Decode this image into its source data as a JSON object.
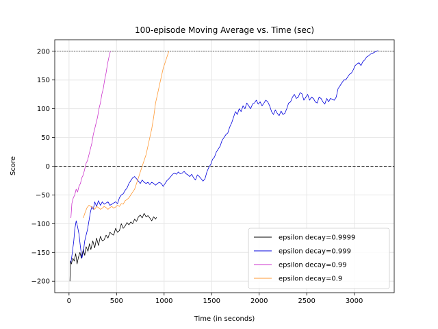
{
  "chart_data": {
    "type": "line",
    "title": "100-episode Moving Average vs. Time (sec)",
    "xlabel": "Time (in seconds)",
    "ylabel": "Score",
    "xlim": [
      -150,
      3420
    ],
    "ylim": [
      -220,
      220
    ],
    "xticks": [
      0,
      500,
      1000,
      1500,
      2000,
      2500,
      3000
    ],
    "yticks": [
      -200,
      -150,
      -100,
      -50,
      0,
      50,
      100,
      150,
      200
    ],
    "grid": true,
    "legend_position": "lower-right",
    "reference_lines": [
      {
        "y": 200,
        "style": "dotted",
        "color": "#000000"
      },
      {
        "y": 0,
        "style": "dashed",
        "color": "#000000"
      }
    ],
    "series": [
      {
        "name": "epsilon decay=0.9999",
        "color": "#000000",
        "points": [
          [
            10,
            -200
          ],
          [
            15,
            -165
          ],
          [
            25,
            -170
          ],
          [
            40,
            -160
          ],
          [
            55,
            -165
          ],
          [
            70,
            -152
          ],
          [
            85,
            -170
          ],
          [
            100,
            -158
          ],
          [
            115,
            -150
          ],
          [
            130,
            -160
          ],
          [
            150,
            -145
          ],
          [
            165,
            -155
          ],
          [
            180,
            -140
          ],
          [
            200,
            -148
          ],
          [
            215,
            -135
          ],
          [
            230,
            -145
          ],
          [
            250,
            -130
          ],
          [
            270,
            -142
          ],
          [
            290,
            -125
          ],
          [
            310,
            -138
          ],
          [
            330,
            -122
          ],
          [
            350,
            -130
          ],
          [
            370,
            -128
          ],
          [
            390,
            -120
          ],
          [
            410,
            -125
          ],
          [
            430,
            -115
          ],
          [
            450,
            -118
          ],
          [
            470,
            -120
          ],
          [
            490,
            -108
          ],
          [
            510,
            -115
          ],
          [
            530,
            -112
          ],
          [
            550,
            -100
          ],
          [
            570,
            -108
          ],
          [
            590,
            -104
          ],
          [
            610,
            -98
          ],
          [
            630,
            -102
          ],
          [
            650,
            -97
          ],
          [
            670,
            -100
          ],
          [
            690,
            -92
          ],
          [
            710,
            -96
          ],
          [
            730,
            -88
          ],
          [
            750,
            -85
          ],
          [
            770,
            -90
          ],
          [
            790,
            -82
          ],
          [
            810,
            -88
          ],
          [
            830,
            -86
          ],
          [
            850,
            -90
          ],
          [
            870,
            -95
          ],
          [
            890,
            -88
          ],
          [
            910,
            -92
          ],
          [
            920,
            -89
          ]
        ]
      },
      {
        "name": "epsilon decay=0.999",
        "color": "#0000dd",
        "points": [
          [
            20,
            -168
          ],
          [
            35,
            -150
          ],
          [
            50,
            -130
          ],
          [
            60,
            -110
          ],
          [
            75,
            -95
          ],
          [
            90,
            -105
          ],
          [
            105,
            -118
          ],
          [
            120,
            -140
          ],
          [
            135,
            -160
          ],
          [
            150,
            -150
          ],
          [
            165,
            -130
          ],
          [
            180,
            -120
          ],
          [
            195,
            -110
          ],
          [
            210,
            -95
          ],
          [
            225,
            -80
          ],
          [
            240,
            -70
          ],
          [
            255,
            -75
          ],
          [
            270,
            -62
          ],
          [
            290,
            -70
          ],
          [
            310,
            -60
          ],
          [
            330,
            -68
          ],
          [
            350,
            -62
          ],
          [
            370,
            -66
          ],
          [
            390,
            -64
          ],
          [
            410,
            -62
          ],
          [
            430,
            -68
          ],
          [
            450,
            -66
          ],
          [
            470,
            -64
          ],
          [
            490,
            -62
          ],
          [
            510,
            -65
          ],
          [
            530,
            -55
          ],
          [
            550,
            -50
          ],
          [
            570,
            -48
          ],
          [
            590,
            -42
          ],
          [
            610,
            -38
          ],
          [
            630,
            -30
          ],
          [
            650,
            -25
          ],
          [
            670,
            -20
          ],
          [
            690,
            -18
          ],
          [
            710,
            -22
          ],
          [
            730,
            -26
          ],
          [
            750,
            -30
          ],
          [
            770,
            -24
          ],
          [
            790,
            -28
          ],
          [
            810,
            -30
          ],
          [
            830,
            -28
          ],
          [
            850,
            -32
          ],
          [
            870,
            -28
          ],
          [
            890,
            -30
          ],
          [
            910,
            -33
          ],
          [
            930,
            -30
          ],
          [
            950,
            -28
          ],
          [
            970,
            -30
          ],
          [
            990,
            -35
          ],
          [
            1010,
            -30
          ],
          [
            1030,
            -25
          ],
          [
            1050,
            -22
          ],
          [
            1070,
            -18
          ],
          [
            1090,
            -14
          ],
          [
            1110,
            -12
          ],
          [
            1130,
            -14
          ],
          [
            1150,
            -10
          ],
          [
            1170,
            -13
          ],
          [
            1190,
            -12
          ],
          [
            1210,
            -9
          ],
          [
            1230,
            -13
          ],
          [
            1250,
            -15
          ],
          [
            1270,
            -18
          ],
          [
            1290,
            -14
          ],
          [
            1310,
            -20
          ],
          [
            1330,
            -24
          ],
          [
            1350,
            -15
          ],
          [
            1370,
            -18
          ],
          [
            1390,
            -22
          ],
          [
            1410,
            -26
          ],
          [
            1430,
            -22
          ],
          [
            1450,
            -10
          ],
          [
            1470,
            -2
          ],
          [
            1490,
            3
          ],
          [
            1510,
            12
          ],
          [
            1530,
            16
          ],
          [
            1550,
            25
          ],
          [
            1570,
            30
          ],
          [
            1590,
            35
          ],
          [
            1610,
            45
          ],
          [
            1630,
            50
          ],
          [
            1650,
            55
          ],
          [
            1670,
            58
          ],
          [
            1690,
            68
          ],
          [
            1710,
            75
          ],
          [
            1730,
            85
          ],
          [
            1750,
            95
          ],
          [
            1770,
            90
          ],
          [
            1790,
            100
          ],
          [
            1810,
            95
          ],
          [
            1830,
            105
          ],
          [
            1850,
            100
          ],
          [
            1870,
            110
          ],
          [
            1890,
            105
          ],
          [
            1910,
            100
          ],
          [
            1930,
            108
          ],
          [
            1950,
            110
          ],
          [
            1970,
            115
          ],
          [
            1990,
            108
          ],
          [
            2010,
            112
          ],
          [
            2030,
            105
          ],
          [
            2050,
            110
          ],
          [
            2070,
            115
          ],
          [
            2090,
            112
          ],
          [
            2110,
            105
          ],
          [
            2130,
            95
          ],
          [
            2150,
            90
          ],
          [
            2170,
            98
          ],
          [
            2190,
            92
          ],
          [
            2210,
            88
          ],
          [
            2230,
            96
          ],
          [
            2250,
            90
          ],
          [
            2270,
            92
          ],
          [
            2290,
            100
          ],
          [
            2310,
            110
          ],
          [
            2330,
            112
          ],
          [
            2350,
            120
          ],
          [
            2370,
            125
          ],
          [
            2390,
            118
          ],
          [
            2410,
            120
          ],
          [
            2430,
            128
          ],
          [
            2450,
            126
          ],
          [
            2470,
            115
          ],
          [
            2490,
            120
          ],
          [
            2510,
            125
          ],
          [
            2530,
            115
          ],
          [
            2550,
            120
          ],
          [
            2570,
            118
          ],
          [
            2590,
            112
          ],
          [
            2610,
            110
          ],
          [
            2630,
            120
          ],
          [
            2650,
            118
          ],
          [
            2670,
            112
          ],
          [
            2690,
            108
          ],
          [
            2710,
            118
          ],
          [
            2730,
            112
          ],
          [
            2750,
            118
          ],
          [
            2770,
            116
          ],
          [
            2790,
            115
          ],
          [
            2810,
            120
          ],
          [
            2830,
            135
          ],
          [
            2850,
            140
          ],
          [
            2870,
            145
          ],
          [
            2890,
            150
          ],
          [
            2910,
            150
          ],
          [
            2930,
            155
          ],
          [
            2950,
            160
          ],
          [
            2970,
            162
          ],
          [
            2990,
            168
          ],
          [
            3010,
            175
          ],
          [
            3030,
            178
          ],
          [
            3050,
            180
          ],
          [
            3070,
            175
          ],
          [
            3090,
            182
          ],
          [
            3110,
            185
          ],
          [
            3130,
            190
          ],
          [
            3150,
            192
          ],
          [
            3170,
            195
          ],
          [
            3190,
            196
          ],
          [
            3210,
            198
          ],
          [
            3230,
            200
          ],
          [
            3250,
            201
          ]
        ]
      },
      {
        "name": "epsilon decay=0.99",
        "color": "#cc33cc",
        "points": [
          [
            20,
            -90
          ],
          [
            30,
            -65
          ],
          [
            45,
            -55
          ],
          [
            60,
            -50
          ],
          [
            75,
            -40
          ],
          [
            90,
            -45
          ],
          [
            105,
            -35
          ],
          [
            120,
            -30
          ],
          [
            135,
            -20
          ],
          [
            150,
            -15
          ],
          [
            165,
            -5
          ],
          [
            180,
            5
          ],
          [
            195,
            10
          ],
          [
            210,
            20
          ],
          [
            225,
            30
          ],
          [
            240,
            40
          ],
          [
            255,
            55
          ],
          [
            270,
            65
          ],
          [
            285,
            75
          ],
          [
            300,
            85
          ],
          [
            315,
            100
          ],
          [
            330,
            110
          ],
          [
            345,
            125
          ],
          [
            360,
            135
          ],
          [
            375,
            150
          ],
          [
            390,
            162
          ],
          [
            405,
            178
          ],
          [
            420,
            190
          ],
          [
            435,
            200
          ]
        ]
      },
      {
        "name": "epsilon decay=0.9",
        "color": "#ff9933",
        "points": [
          [
            150,
            -90
          ],
          [
            170,
            -80
          ],
          [
            190,
            -72
          ],
          [
            210,
            -68
          ],
          [
            230,
            -70
          ],
          [
            250,
            -72
          ],
          [
            270,
            -75
          ],
          [
            290,
            -70
          ],
          [
            310,
            -72
          ],
          [
            330,
            -75
          ],
          [
            350,
            -73
          ],
          [
            370,
            -70
          ],
          [
            390,
            -72
          ],
          [
            410,
            -75
          ],
          [
            430,
            -72
          ],
          [
            450,
            -70
          ],
          [
            470,
            -73
          ],
          [
            490,
            -71
          ],
          [
            510,
            -68
          ],
          [
            530,
            -70
          ],
          [
            550,
            -65
          ],
          [
            570,
            -66
          ],
          [
            590,
            -60
          ],
          [
            610,
            -58
          ],
          [
            630,
            -55
          ],
          [
            650,
            -50
          ],
          [
            670,
            -45
          ],
          [
            690,
            -40
          ],
          [
            710,
            -30
          ],
          [
            730,
            -20
          ],
          [
            750,
            -10
          ],
          [
            770,
            0
          ],
          [
            790,
            10
          ],
          [
            810,
            20
          ],
          [
            830,
            35
          ],
          [
            850,
            50
          ],
          [
            870,
            65
          ],
          [
            890,
            85
          ],
          [
            910,
            110
          ],
          [
            930,
            125
          ],
          [
            950,
            140
          ],
          [
            970,
            155
          ],
          [
            990,
            170
          ],
          [
            1010,
            180
          ],
          [
            1030,
            190
          ],
          [
            1050,
            200
          ]
        ]
      }
    ]
  }
}
